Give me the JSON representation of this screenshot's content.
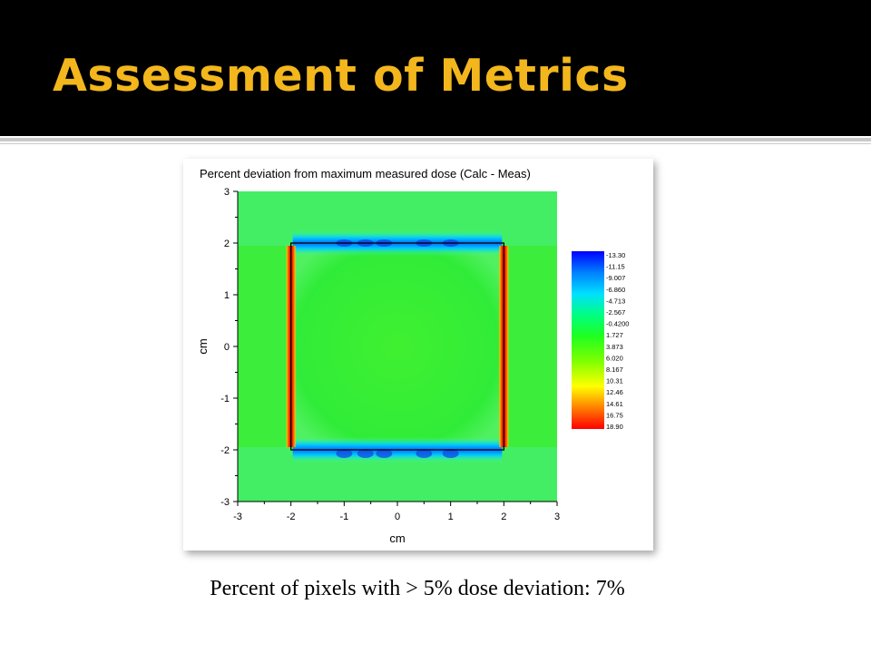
{
  "slide": {
    "title": "Assessment of Metrics",
    "caption": "Percent of pixels with > 5% dose deviation: 7%",
    "title_color": "#f3b71d",
    "header_background": "#000000"
  },
  "chart_data": {
    "type": "heatmap",
    "title": "Percent deviation from maximum measured dose (Calc - Meas)",
    "xlabel": "cm",
    "ylabel": "cm",
    "xlim": [
      -3,
      3
    ],
    "ylim": [
      -3,
      3
    ],
    "x_ticks": [
      "-3",
      "-2",
      "-1",
      "0",
      "1",
      "2",
      "3"
    ],
    "y_ticks": [
      "3",
      "2",
      "1",
      "0",
      "-1",
      "-2",
      "-3"
    ],
    "field_outline": {
      "x": [
        -2,
        2
      ],
      "y": [
        -2,
        2
      ]
    },
    "colorbar": {
      "labels": [
        "-13.30",
        "-11.15",
        "-9.007",
        "-6.860",
        "-4.713",
        "-2.567",
        "-0.4200",
        "1.727",
        "3.873",
        "6.020",
        "8.167",
        "10.31",
        "12.46",
        "14.61",
        "16.75",
        "18.90"
      ],
      "min": -13.3,
      "max": 18.9,
      "colors": [
        "#0000ff",
        "#0080ff",
        "#00e0ff",
        "#00ff80",
        "#20ff20",
        "#80ff00",
        "#ffff00",
        "#ff8000",
        "#ff0000"
      ]
    },
    "features": [
      {
        "region": "background",
        "value": 2.5
      },
      {
        "region": "inside field",
        "value": 1.5
      },
      {
        "region": "left edge x=-2",
        "value": 18.9
      },
      {
        "region": "right edge x=2",
        "value": 18.9
      },
      {
        "region": "top edge y=2",
        "value": -11.15
      },
      {
        "region": "bottom edge y=-2",
        "value": -11.15
      }
    ]
  }
}
